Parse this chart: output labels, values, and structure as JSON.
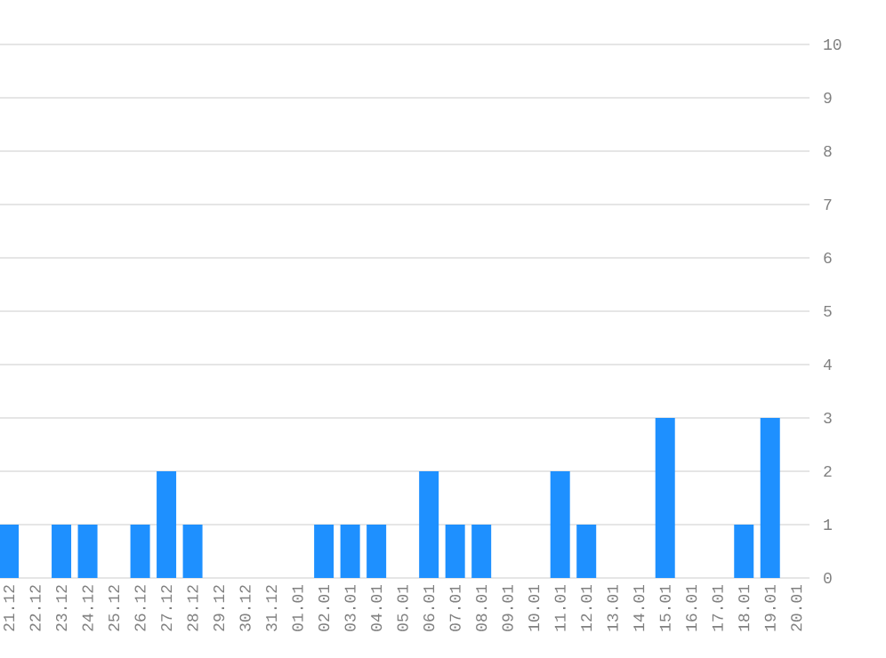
{
  "chart_data": {
    "type": "bar",
    "categories": [
      "21.12",
      "22.12",
      "23.12",
      "24.12",
      "25.12",
      "26.12",
      "27.12",
      "28.12",
      "29.12",
      "30.12",
      "31.12",
      "01.01",
      "02.01",
      "03.01",
      "04.01",
      "05.01",
      "06.01",
      "07.01",
      "08.01",
      "09.01",
      "10.01",
      "11.01",
      "12.01",
      "13.01",
      "14.01",
      "15.01",
      "16.01",
      "17.01",
      "18.01",
      "19.01",
      "20.01"
    ],
    "values": [
      1,
      0,
      1,
      1,
      0,
      1,
      2,
      1,
      0,
      0,
      0,
      0,
      1,
      1,
      1,
      0,
      2,
      1,
      1,
      0,
      0,
      2,
      1,
      0,
      0,
      3,
      0,
      0,
      1,
      3,
      0
    ],
    "color": "#1e90ff",
    "ylim": [
      0,
      10
    ],
    "yticks": [
      0,
      1,
      2,
      3,
      4,
      5,
      6,
      7,
      8,
      9,
      10
    ],
    "grid": "y"
  }
}
